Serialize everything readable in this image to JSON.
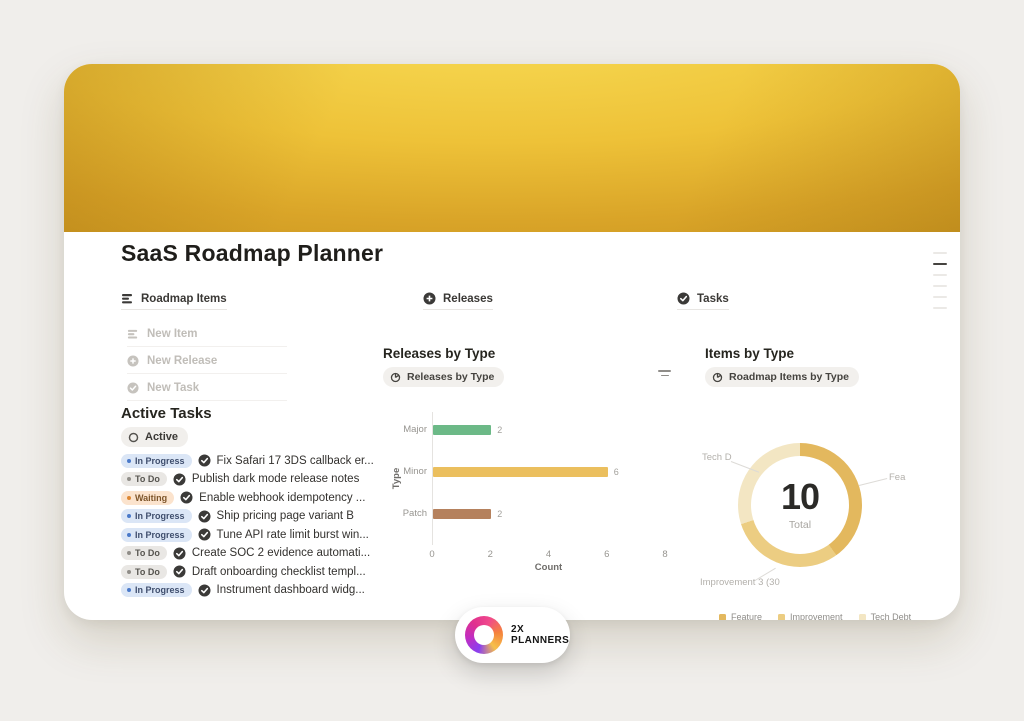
{
  "page": {
    "title": "SaaS Roadmap Planner"
  },
  "tabs": [
    {
      "label": "Roadmap Items",
      "icon": "rows-icon"
    },
    {
      "label": "Releases",
      "icon": "plus-circle-icon"
    },
    {
      "label": "Tasks",
      "icon": "check-circle-icon"
    }
  ],
  "quick_actions": [
    {
      "label": "New Item",
      "icon": "rows-icon"
    },
    {
      "label": "New Release",
      "icon": "plus-circle-icon"
    },
    {
      "label": "New Task",
      "icon": "check-circle-icon"
    }
  ],
  "tasks_panel": {
    "heading": "Active Tasks",
    "filter_chip": "Active",
    "items": [
      {
        "status": "In Progress",
        "title": "Fix Safari 17 3DS callback er..."
      },
      {
        "status": "To Do",
        "title": "Publish dark mode release notes"
      },
      {
        "status": "Waiting",
        "title": "Enable webhook idempotency ..."
      },
      {
        "status": "In Progress",
        "title": "Ship pricing page variant B"
      },
      {
        "status": "In Progress",
        "title": "Tune API rate limit burst win..."
      },
      {
        "status": "To Do",
        "title": "Create SOC 2 evidence automati..."
      },
      {
        "status": "To Do",
        "title": "Draft onboarding checklist templ..."
      },
      {
        "status": "In Progress",
        "title": "Instrument dashboard widg..."
      }
    ]
  },
  "releases_section": {
    "heading": "Releases by Type",
    "chip_label": "Releases by Type"
  },
  "items_section": {
    "heading": "Items by Type",
    "chip_label": "Roadmap Items by Type",
    "center_value": "10",
    "center_label": "Total",
    "callout_left": "Tech D",
    "callout_right": "Fea",
    "callout_bottom": "Improvement 3 (30"
  },
  "brand": {
    "line1": "2X",
    "line2": "PLANNERS"
  },
  "colors": {
    "banner_gold": "#eec238",
    "status_in_progress": "#4a79c9",
    "status_to_do": "#908d88",
    "status_waiting": "#de8733"
  },
  "chart_data": [
    {
      "type": "bar",
      "orientation": "horizontal",
      "title": "Releases by Type",
      "categories": [
        "Major",
        "Minor",
        "Patch"
      ],
      "values": [
        2,
        6,
        2
      ],
      "colors": [
        "#6cb987",
        "#ebbf5e",
        "#b5815d"
      ],
      "xlabel": "Count",
      "ylabel": "Type",
      "xlim": [
        0,
        8
      ],
      "xticks": [
        0,
        2,
        4,
        6,
        8
      ],
      "grid": false,
      "value_labels": true
    },
    {
      "type": "pie",
      "donut": true,
      "title": "Items by Type",
      "total": 10,
      "center_label": "Total",
      "slices": [
        {
          "label": "Feature",
          "value": 4,
          "pct": 40,
          "color": "#e3b85e"
        },
        {
          "label": "Improvement",
          "value": 3,
          "pct": 30,
          "color": "#eccd82"
        },
        {
          "label": "Tech Debt",
          "value": 3,
          "pct": 30,
          "color": "#f3e6c3"
        }
      ],
      "legend": [
        "Feature",
        "Improvement",
        "Tech Debt"
      ],
      "legend_position": "bottom"
    }
  ]
}
